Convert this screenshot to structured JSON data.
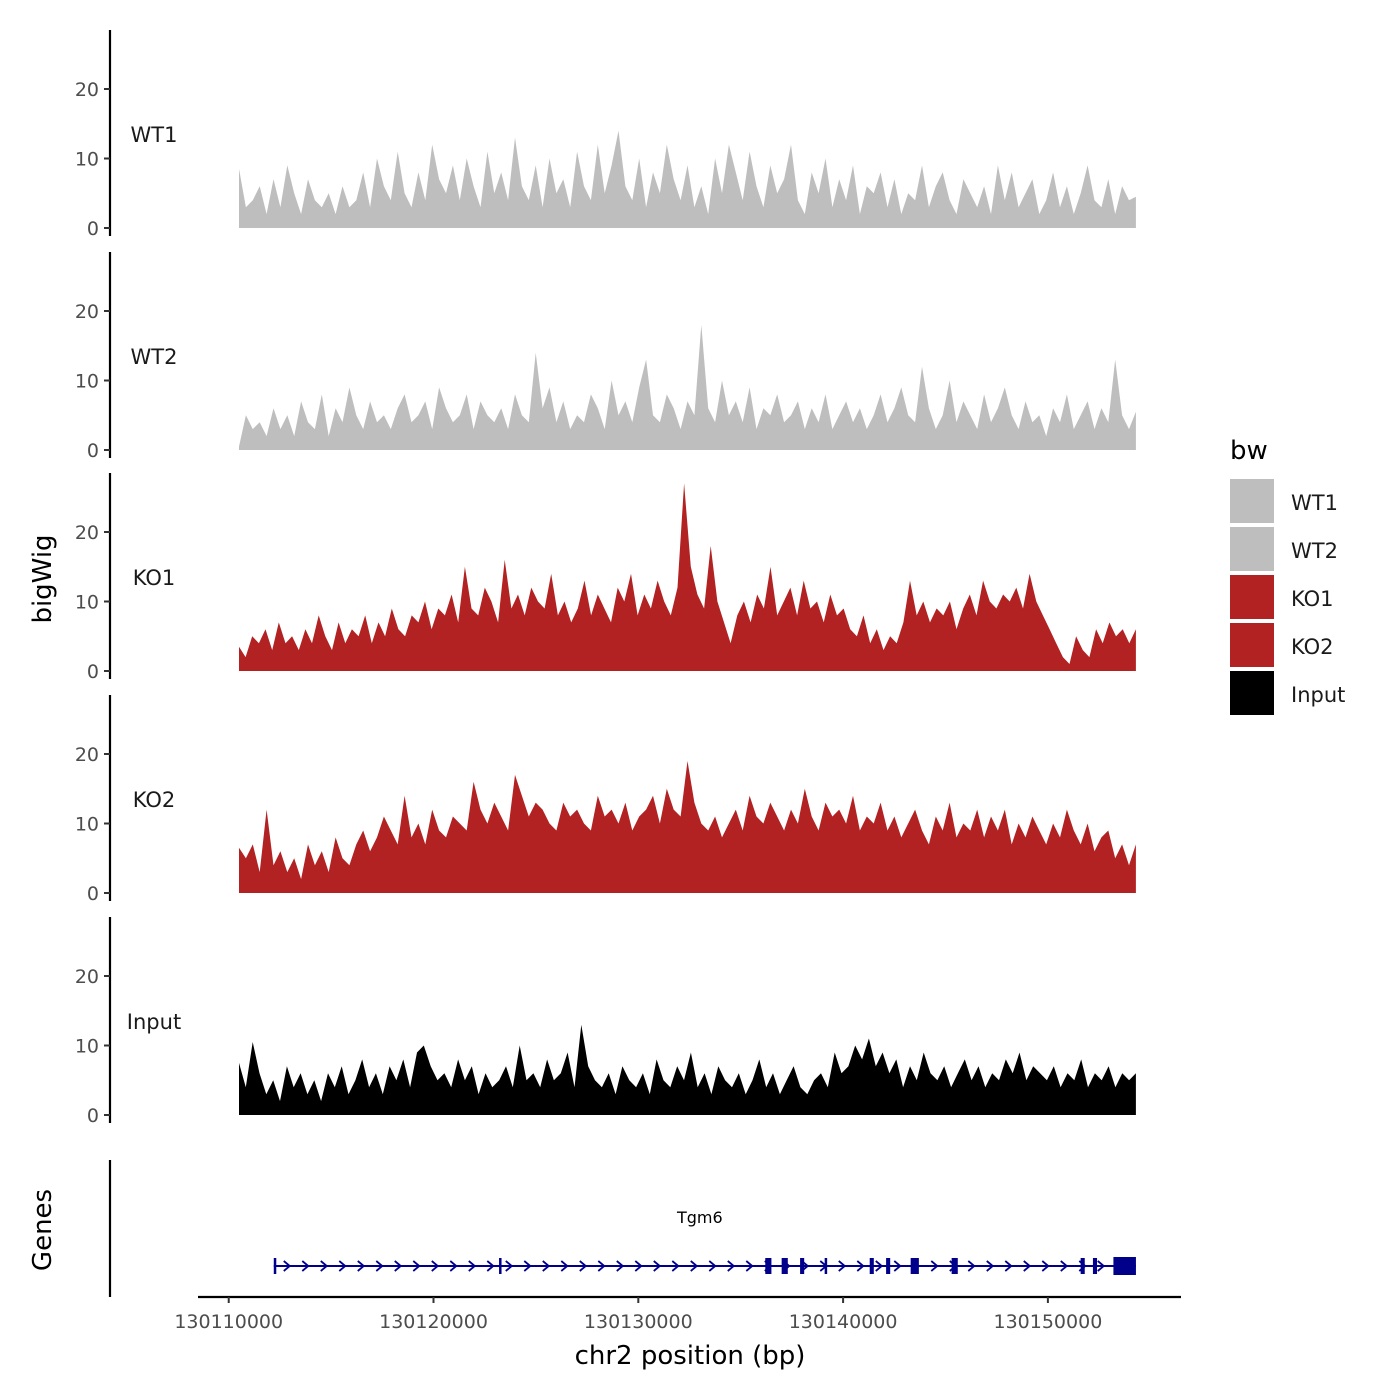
{
  "chart_data": {
    "type": "area",
    "ylabel": "bigWig",
    "xlabel": "chr2 position (bp)",
    "xlim": [
      130108500,
      130156500
    ],
    "ylim": [
      0,
      28
    ],
    "yticks": [
      0,
      10,
      20
    ],
    "xticks": [
      130110000,
      130120000,
      130130000,
      130140000,
      130150000
    ],
    "x_start": 130110500,
    "x_end": 130154300,
    "colors": {
      "WT": "#bebebe",
      "KO": "#b22222",
      "Input": "#000000",
      "gene": "#00008b"
    },
    "legend": {
      "title": "bw",
      "items": [
        {
          "label": "WT1",
          "color": "#bebebe"
        },
        {
          "label": "WT2",
          "color": "#bebebe"
        },
        {
          "label": "KO1",
          "color": "#b22222"
        },
        {
          "label": "KO2",
          "color": "#b22222"
        },
        {
          "label": "Input",
          "color": "#000000"
        }
      ]
    },
    "series": [
      {
        "name": "WT1",
        "color": "#bebebe",
        "values": [
          8.5,
          3,
          4,
          6,
          2,
          7,
          3,
          9,
          5,
          2,
          7,
          4,
          3,
          5,
          2,
          6,
          3,
          4,
          8,
          3,
          10,
          6,
          4,
          11,
          5,
          3,
          8,
          4,
          12,
          7,
          5,
          9,
          4,
          10,
          6,
          3,
          11,
          5,
          8,
          4,
          13,
          6,
          4,
          9,
          3,
          10,
          5,
          7,
          3,
          11,
          6,
          4,
          12,
          5,
          9,
          14,
          6,
          4,
          10,
          3,
          8,
          5,
          12,
          7,
          4,
          9,
          3,
          6,
          2,
          10,
          5,
          12,
          8,
          4,
          11,
          6,
          3,
          9,
          5,
          7,
          12,
          4,
          2,
          8,
          5,
          10,
          3,
          7,
          4,
          9,
          2,
          6,
          5,
          8,
          3,
          7,
          2,
          5,
          4,
          9,
          3,
          6,
          8,
          4,
          2,
          7,
          5,
          3,
          6,
          2,
          9,
          4,
          8,
          3,
          5,
          7,
          2,
          4,
          8,
          3,
          6,
          2,
          5,
          9,
          4,
          3,
          7,
          2,
          6,
          4,
          4.5
        ]
      },
      {
        "name": "WT2",
        "color": "#bebebe",
        "values": [
          0.5,
          5,
          3,
          4,
          2,
          6,
          3,
          5,
          2,
          7,
          4,
          3,
          8,
          2,
          6,
          4,
          9,
          5,
          3,
          7,
          4,
          5,
          3,
          6,
          8,
          4,
          5,
          7,
          3,
          9,
          6,
          4,
          5,
          8,
          3,
          7,
          5,
          4,
          6,
          3,
          8,
          5,
          4,
          14,
          6,
          9,
          4,
          7,
          3,
          5,
          4,
          8,
          6,
          3,
          10,
          5,
          7,
          4,
          9,
          13,
          5,
          4,
          8,
          6,
          3,
          7,
          5,
          18,
          6,
          4,
          10,
          5,
          7,
          4,
          9,
          3,
          6,
          5,
          8,
          4,
          5,
          7,
          3,
          6,
          4,
          8,
          3,
          5,
          7,
          4,
          6,
          3,
          5,
          8,
          4,
          6,
          9,
          5,
          4,
          12,
          6,
          3,
          5,
          10,
          4,
          7,
          5,
          3,
          8,
          4,
          6,
          9,
          5,
          3,
          7,
          4,
          5,
          2,
          6,
          4,
          8,
          3,
          5,
          7,
          3,
          6,
          4,
          13,
          5,
          3,
          5.5
        ]
      },
      {
        "name": "KO1",
        "color": "#b22222",
        "values": [
          3.5,
          2,
          5,
          4,
          6,
          3,
          7,
          4,
          5,
          3,
          6,
          4,
          8,
          5,
          3,
          7,
          4,
          6,
          5,
          8,
          4,
          7,
          5,
          9,
          6,
          5,
          8,
          7,
          10,
          6,
          9,
          8,
          11,
          7,
          15,
          9,
          8,
          12,
          10,
          7,
          16,
          9,
          11,
          8,
          12,
          10,
          9,
          14,
          8,
          10,
          7,
          9,
          13,
          8,
          11,
          9,
          7,
          12,
          10,
          14,
          8,
          11,
          9,
          13,
          10,
          8,
          12,
          27,
          15,
          11,
          9,
          18,
          10,
          7,
          4,
          8,
          10,
          7,
          11,
          9,
          15,
          8,
          10,
          12,
          8,
          13,
          9,
          10,
          7,
          11,
          8,
          9,
          6,
          5,
          8,
          4,
          6,
          3,
          5,
          4,
          7,
          13,
          8,
          10,
          7,
          9,
          8,
          10,
          6,
          9,
          11,
          8,
          13,
          10,
          9,
          11,
          10,
          12,
          9,
          14,
          10,
          8,
          6,
          4,
          2,
          1,
          5,
          3,
          2,
          6,
          4,
          7,
          5,
          6,
          4,
          6
        ]
      },
      {
        "name": "KO2",
        "color": "#b22222",
        "values": [
          6.5,
          5,
          7,
          3,
          12,
          4,
          6,
          3,
          5,
          2,
          7,
          4,
          6,
          3,
          8,
          5,
          4,
          7,
          9,
          6,
          8,
          11,
          9,
          7,
          14,
          8,
          10,
          7,
          12,
          9,
          8,
          11,
          10,
          9,
          16,
          12,
          10,
          13,
          11,
          9,
          17,
          14,
          11,
          13,
          12,
          10,
          9,
          13,
          11,
          12,
          10,
          9,
          14,
          11,
          12,
          10,
          13,
          9,
          11,
          12,
          14,
          10,
          15,
          12,
          11,
          19,
          13,
          10,
          9,
          11,
          8,
          10,
          12,
          9,
          14,
          11,
          10,
          13,
          11,
          9,
          12,
          10,
          15,
          11,
          9,
          13,
          11,
          12,
          10,
          14,
          9,
          11,
          10,
          13,
          9,
          11,
          8,
          10,
          12,
          9,
          7,
          11,
          9,
          13,
          8,
          10,
          9,
          12,
          8,
          11,
          9,
          12,
          7,
          10,
          8,
          11,
          9,
          7,
          10,
          8,
          12,
          9,
          7,
          10,
          6,
          8,
          9,
          5,
          7,
          4,
          7
        ]
      },
      {
        "name": "Input",
        "color": "#000000",
        "values": [
          7.5,
          4,
          10.5,
          6,
          3,
          5,
          2,
          7,
          4,
          6,
          3,
          5,
          2,
          6,
          4,
          7,
          3,
          5,
          8,
          4,
          6,
          3,
          7,
          5,
          8,
          4,
          9,
          10,
          7,
          5,
          6,
          4,
          8,
          5,
          7,
          3,
          6,
          4,
          5,
          7,
          4,
          10,
          5,
          6,
          4,
          8,
          5,
          6,
          9,
          4,
          13,
          7,
          5,
          4,
          6,
          3,
          7,
          5,
          4,
          6,
          3,
          8,
          5,
          4,
          7,
          5,
          9,
          4,
          6,
          3,
          7,
          5,
          4,
          6,
          3,
          5,
          8,
          4,
          6,
          3,
          5,
          7,
          4,
          3,
          5,
          6,
          4,
          9,
          6,
          7,
          10,
          8,
          11,
          7,
          9,
          6,
          8,
          4,
          7,
          5,
          9,
          6,
          5,
          7,
          4,
          6,
          8,
          5,
          7,
          4,
          6,
          5,
          8,
          6,
          9,
          5,
          7,
          6,
          5,
          7,
          4,
          6,
          5,
          8,
          4,
          6,
          5,
          7,
          4,
          6,
          5,
          6
        ]
      }
    ],
    "genes": {
      "title": "Genes",
      "gene_name": "Tgm6",
      "start": 130112200,
      "end": 130154300,
      "strand": "+",
      "exons": [
        [
          130112200,
          130112300
        ],
        [
          130123200,
          130123300
        ],
        [
          130136200,
          130136500
        ],
        [
          130137000,
          130137300
        ],
        [
          130137900,
          130138100
        ],
        [
          130139100,
          130139200
        ],
        [
          130141300,
          130141500
        ],
        [
          130142100,
          130142300
        ],
        [
          130143300,
          130143700
        ],
        [
          130145300,
          130145600
        ],
        [
          130151600,
          130151800
        ],
        [
          130152200,
          130152400
        ],
        [
          130153200,
          130154300
        ]
      ]
    }
  }
}
